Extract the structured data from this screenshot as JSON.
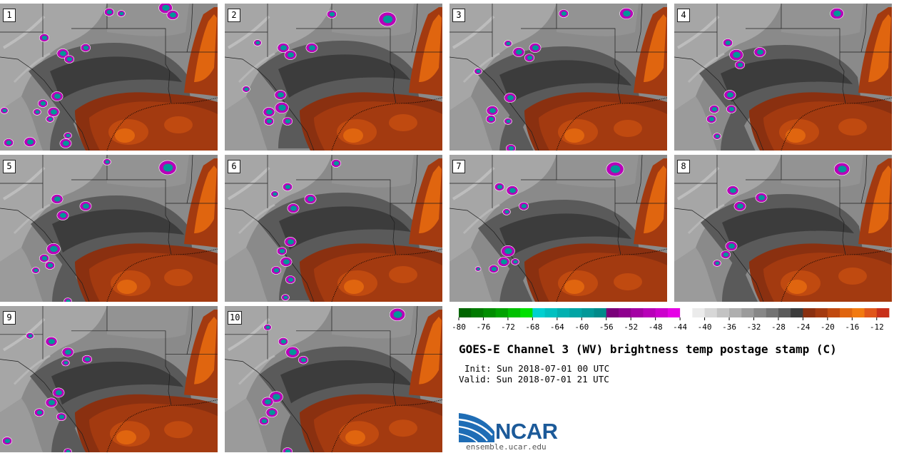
{
  "panels": [
    {
      "label": "1"
    },
    {
      "label": "2"
    },
    {
      "label": "3"
    },
    {
      "label": "4"
    },
    {
      "label": "5"
    },
    {
      "label": "6"
    },
    {
      "label": "7"
    },
    {
      "label": "8"
    },
    {
      "label": "9"
    },
    {
      "label": "10"
    }
  ],
  "colorbar": {
    "range": [
      -80,
      -10
    ],
    "ticks": [
      -80,
      -76,
      -72,
      -68,
      -64,
      -60,
      -56,
      -52,
      -48,
      -44,
      -40,
      -36,
      -32,
      -28,
      -24,
      -20,
      -16,
      -12
    ],
    "colors": [
      "#006600",
      "#007a00",
      "#008d00",
      "#00a200",
      "#00c000",
      "#00e000",
      "#00d0d0",
      "#00c0c0",
      "#00b0b0",
      "#00a4a4",
      "#009898",
      "#008a8a",
      "#7a007a",
      "#8f008f",
      "#a300a3",
      "#b800b8",
      "#cc00cc",
      "#e600e6",
      "#ffffff",
      "#ebebeb",
      "#d7d7d7",
      "#c3c3c3",
      "#afafaf",
      "#9b9b9b",
      "#878787",
      "#737373",
      "#5a5a5a",
      "#3c3c3c",
      "#8a3010",
      "#a33a10",
      "#c04a10",
      "#e0650f",
      "#f27a10",
      "#e0561a",
      "#c8301a"
    ]
  },
  "title": "GOES-E Channel 3 (WV) brightness temp postage stamp (C)",
  "init": "Init: Sun 2018-07-01 00 UTC",
  "valid": "Valid: Sun 2018-07-01 21 UTC",
  "logo": {
    "text": "NCAR",
    "url_text": "ensemble.ucar.edu",
    "color": "#1c5a99"
  }
}
